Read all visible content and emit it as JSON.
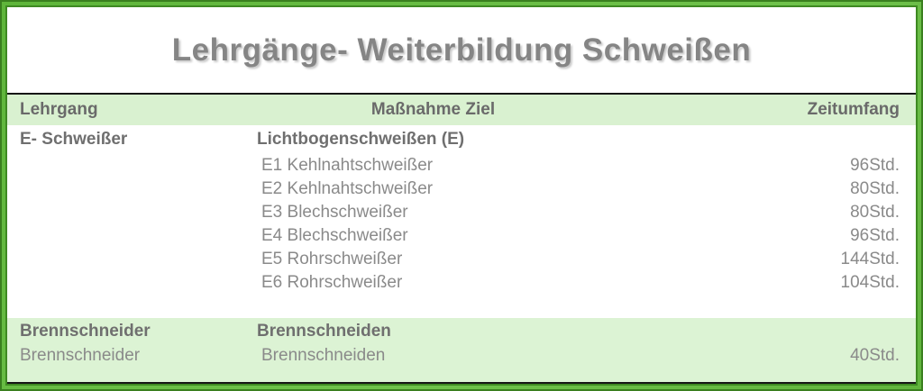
{
  "title": "Lehrgänge- Weiterbildung Schweißen",
  "table": {
    "headers": {
      "lehrgang": "Lehrgang",
      "massnahme": "Maßnahme Ziel",
      "zeit": "Zeitumfang"
    },
    "rows": [
      {
        "lehrgang": "E- Schweißer",
        "massnahme": "Lichtbogenschweißen (E)",
        "zeit": ""
      },
      {
        "lehrgang": "",
        "massnahme": "E1 Kehlnahtschweißer",
        "zeit": "96Std."
      },
      {
        "lehrgang": "",
        "massnahme": "E2 Kehlnahtschweißer",
        "zeit": "80Std."
      },
      {
        "lehrgang": "",
        "massnahme": "E3 Blechschweißer",
        "zeit": "80Std."
      },
      {
        "lehrgang": "",
        "massnahme": "E4 Blechschweißer",
        "zeit": "96Std."
      },
      {
        "lehrgang": "",
        "massnahme": "E5 Rohrschweißer",
        "zeit": "144Std."
      },
      {
        "lehrgang": "",
        "massnahme": "E6 Rohrschweißer",
        "zeit": "104Std."
      },
      {
        "lehrgang": "Brennschneider",
        "massnahme": "Brennschneiden",
        "zeit": ""
      },
      {
        "lehrgang": "Brennschneider",
        "massnahme": "Brennschneiden",
        "zeit": "40Std."
      }
    ]
  },
  "colors": {
    "frame_outer": "#3a7f1f",
    "frame_bright": "#6fc24b",
    "frame_inner_line": "#3e8a22",
    "header_bg": "#d9f1d0",
    "section_bg": "#dcf3d4",
    "table_rule": "#161616",
    "title_text": "#858585",
    "header_text": "#6a6a6a",
    "bold_text": "#6f6f6f",
    "body_text": "#8a8a8a"
  }
}
